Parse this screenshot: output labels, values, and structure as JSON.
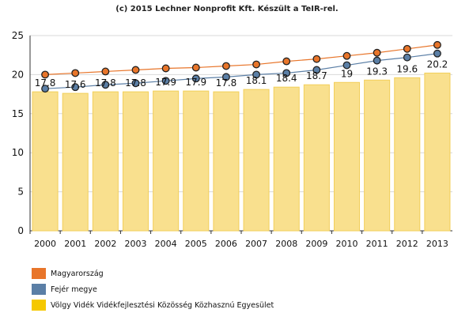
{
  "credit": "(c) 2015 Lechner Nonprofit Kft. Készült a TeIR-rel.",
  "chart_data": {
    "type": "bar",
    "categories": [
      "2000",
      "2001",
      "2002",
      "2003",
      "2004",
      "2005",
      "2006",
      "2007",
      "2008",
      "2009",
      "2010",
      "2011",
      "2012",
      "2013"
    ],
    "ylim": [
      0,
      25
    ],
    "yticks": [
      0,
      5,
      10,
      15,
      20,
      25
    ],
    "grid": true,
    "series": [
      {
        "name": "Völgy Vidék Vidékfejlesztési Közösség Közhasznú Egyesület",
        "kind": "bar",
        "color": "#f9e08e",
        "values": [
          17.8,
          17.6,
          17.8,
          17.8,
          17.9,
          17.9,
          17.8,
          18.1,
          18.4,
          18.7,
          19,
          19.3,
          19.6,
          20.2
        ],
        "labels": [
          "17.8",
          "17.6",
          "17.8",
          "17.8",
          "17.9",
          "17.9",
          "17.8",
          "18.1",
          "18.4",
          "18.7",
          "19",
          "19.3",
          "19.6",
          "20.2"
        ]
      },
      {
        "name": "Magyarország",
        "kind": "line",
        "color": "#e8752a",
        "values": [
          20.0,
          20.2,
          20.4,
          20.6,
          20.8,
          20.9,
          21.1,
          21.3,
          21.7,
          22.0,
          22.4,
          22.8,
          23.3,
          23.8
        ]
      },
      {
        "name": "Fejér megye",
        "kind": "line",
        "color": "#5b7fa6",
        "values": [
          18.2,
          18.4,
          18.7,
          18.9,
          19.2,
          19.5,
          19.7,
          20.0,
          20.2,
          20.6,
          21.2,
          21.8,
          22.2,
          22.7
        ]
      }
    ]
  },
  "legend": [
    {
      "label": "Magyarország",
      "color": "#e8752a"
    },
    {
      "label": "Fejér megye",
      "color": "#5b7fa6"
    },
    {
      "label": "Völgy Vidék Vidékfejlesztési Közösség Közhasznú Egyesület",
      "color": "#f5c800"
    }
  ]
}
